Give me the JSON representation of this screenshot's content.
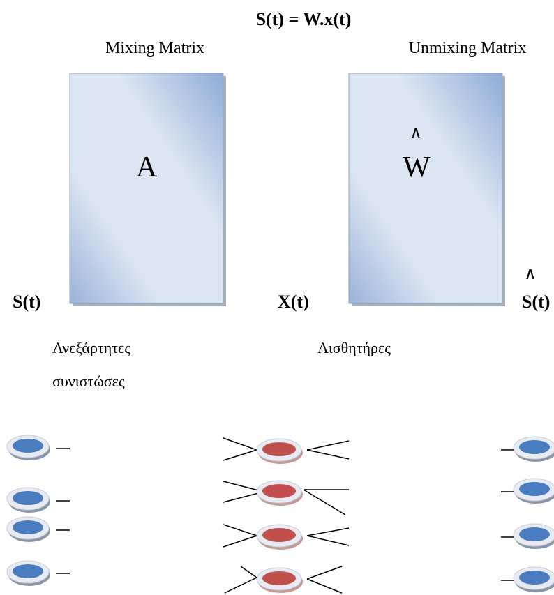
{
  "title": "S(t) = W.x(t)",
  "matrices": [
    {
      "heading": "Mixing Matrix",
      "label": "A"
    },
    {
      "heading": "Unmixing Matrix",
      "label": "W",
      "hat": "∧"
    }
  ],
  "signals": [
    {
      "label": "S(t)"
    },
    {
      "label": "X(t)"
    },
    {
      "label": "S(t)",
      "hat": "∧"
    }
  ],
  "groups": [
    {
      "caption": [
        "Ανεξάρτητες",
        "συνιστώσες"
      ]
    },
    {
      "caption": [
        "Αισθητήρες"
      ]
    }
  ]
}
